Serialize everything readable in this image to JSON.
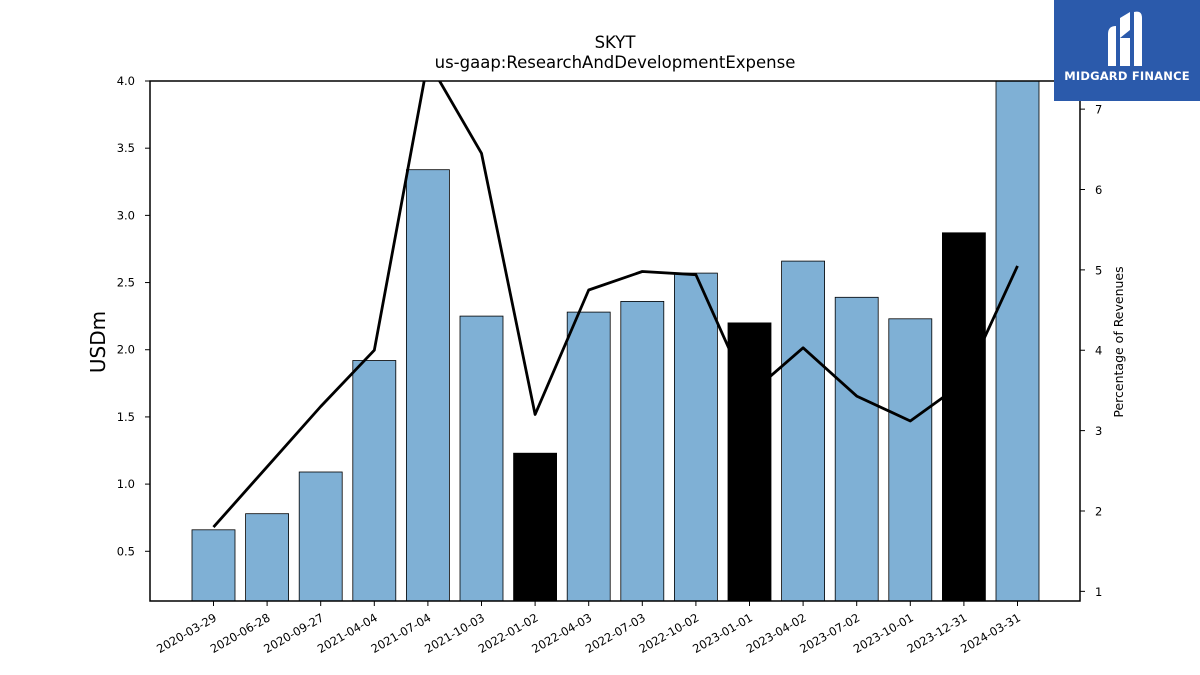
{
  "brand": {
    "name": "MIDGARD FINANCE",
    "logo_color": "#2b5aab",
    "logo_icon": "midgard-logo-icon"
  },
  "chart_data": {
    "type": "bar",
    "title": "SKYT",
    "subtitle": "us-gaap:ResearchAndDevelopmentExpense",
    "ylabel": "USDm",
    "y2label": "Percentage of Revenues",
    "ylim": [
      0.13,
      4.0
    ],
    "y2lim": [
      0.88,
      7.35
    ],
    "yticks": [
      "0.5",
      "1.0",
      "1.5",
      "2.0",
      "2.5",
      "3.0",
      "3.5",
      "4.0"
    ],
    "y2ticks": [
      "1",
      "2",
      "3",
      "4",
      "5",
      "6",
      "7"
    ],
    "categories": [
      "2020-03-29",
      "2020-06-28",
      "2020-09-27",
      "2021-04-04",
      "2021-07-04",
      "2021-10-03",
      "2022-01-02",
      "2022-04-03",
      "2022-07-03",
      "2022-10-02",
      "2023-01-01",
      "2023-04-02",
      "2023-07-02",
      "2023-10-01",
      "2023-12-31",
      "2024-03-31"
    ],
    "series": [
      {
        "type": "bar",
        "values": [
          0.66,
          0.78,
          1.09,
          1.92,
          3.34,
          2.25,
          1.23,
          2.28,
          2.36,
          2.57,
          2.2,
          2.66,
          2.39,
          2.23,
          2.87,
          4.05
        ],
        "highlight": [
          false,
          false,
          false,
          false,
          false,
          false,
          true,
          false,
          false,
          false,
          true,
          false,
          false,
          false,
          true,
          false
        ],
        "color": "#7fb0d5",
        "highlight_color": "#000000"
      },
      {
        "type": "line",
        "axis": "right",
        "values": [
          1.8,
          2.55,
          3.3,
          4.0,
          7.6,
          6.45,
          3.2,
          4.75,
          4.98,
          4.94,
          3.45,
          4.03,
          3.43,
          3.12,
          3.6,
          5.05
        ],
        "color": "#000000"
      }
    ],
    "grid": false,
    "legend": "none"
  }
}
